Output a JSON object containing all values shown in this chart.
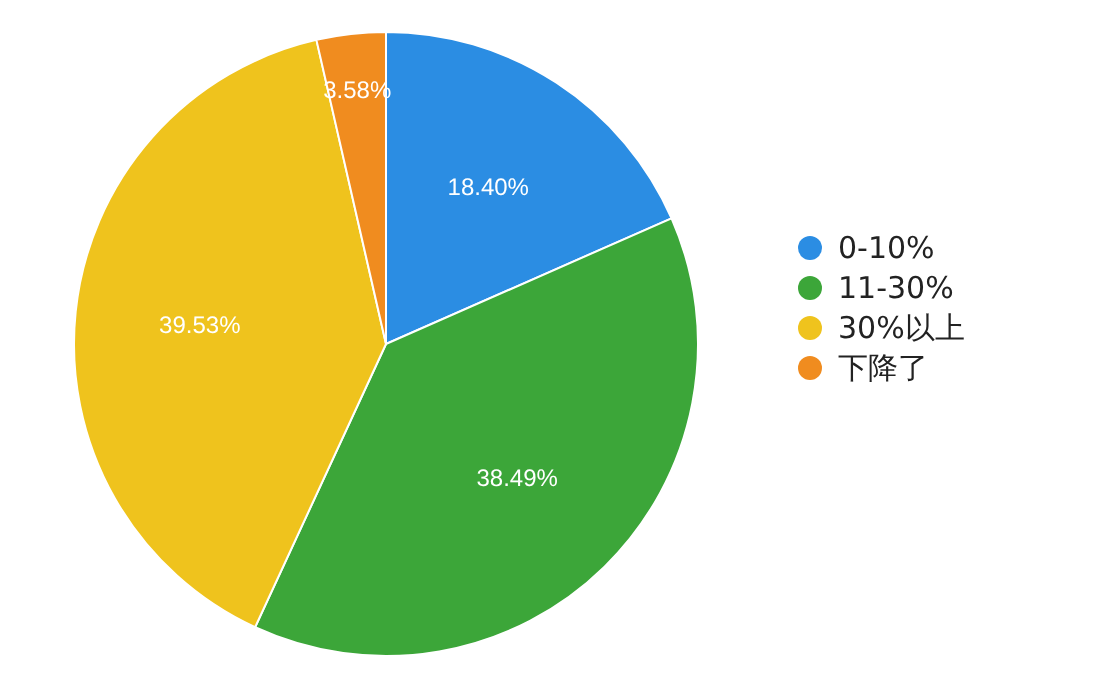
{
  "chart_data": {
    "type": "pie",
    "categories": [
      "0-10%",
      "11-30%",
      "30%以上",
      "下降了"
    ],
    "values": [
      18.4,
      38.49,
      39.53,
      3.58
    ],
    "colors": [
      "#2b8de3",
      "#3ca639",
      "#efc31d",
      "#f08c1f"
    ],
    "value_labels": [
      "18.40%",
      "38.49%",
      "39.53%",
      "3.58%"
    ],
    "legend": "right"
  }
}
